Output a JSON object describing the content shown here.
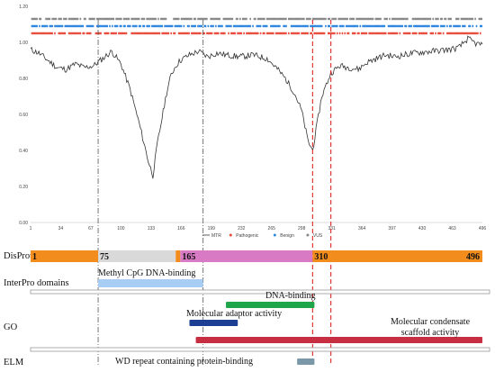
{
  "chart_data": {
    "type": "line",
    "x_ticks": [
      "1",
      "34",
      "67",
      "100",
      "133",
      "166",
      "199",
      "232",
      "265",
      "298",
      "331",
      "364",
      "397",
      "430",
      "463",
      "496"
    ],
    "y_ticks": [
      "0.00",
      "0.20",
      "0.40",
      "0.60",
      "0.80",
      "1.00",
      "1.20"
    ],
    "xlim": [
      1,
      496
    ],
    "ylim": [
      0,
      1.2
    ],
    "grid": false,
    "series": [
      {
        "name": "MTR",
        "color": "#333333",
        "x": [
          1,
          10,
          20,
          30,
          40,
          50,
          60,
          70,
          80,
          90,
          100,
          110,
          120,
          130,
          135,
          140,
          145,
          150,
          155,
          160,
          165,
          175,
          185,
          195,
          205,
          215,
          230,
          245,
          260,
          270,
          280,
          290,
          298,
          305,
          310,
          315,
          320,
          330,
          340,
          350,
          360,
          370,
          380,
          390,
          400,
          420,
          440,
          460,
          470,
          480,
          490,
          496
        ],
        "values": [
          0.96,
          0.94,
          0.9,
          0.86,
          0.85,
          0.88,
          0.86,
          0.87,
          0.91,
          0.95,
          0.88,
          0.74,
          0.55,
          0.34,
          0.26,
          0.44,
          0.58,
          0.72,
          0.82,
          0.87,
          0.9,
          0.93,
          0.95,
          0.92,
          0.94,
          0.93,
          0.92,
          0.93,
          0.91,
          0.86,
          0.8,
          0.72,
          0.62,
          0.45,
          0.4,
          0.55,
          0.7,
          0.83,
          0.87,
          0.86,
          0.85,
          0.89,
          0.91,
          0.93,
          0.92,
          0.94,
          0.95,
          0.96,
          0.97,
          1.02,
          0.99,
          0.99
        ]
      }
    ],
    "variant_rows": [
      {
        "name": "VUS",
        "color": "#888888",
        "y": 1.13
      },
      {
        "name": "Benign",
        "color": "#2e86de",
        "y": 1.09
      },
      {
        "name": "Pathogenic",
        "color": "#e74c3c",
        "y": 1.05
      }
    ],
    "legend": {
      "position": "bottom",
      "items": [
        {
          "label": "MTR",
          "color": "#333333",
          "marker": "line"
        },
        {
          "label": "Pathogenic",
          "color": "#e74c3c",
          "marker": "dot"
        },
        {
          "label": "Benign",
          "color": "#2e86de",
          "marker": "dot"
        },
        {
          "label": "VUS",
          "color": "#888888",
          "marker": "dot"
        }
      ]
    },
    "guide_lines": [
      {
        "x": 75,
        "style": "dash-dot",
        "color": "#555555"
      },
      {
        "x": 190,
        "style": "dash-dot",
        "color": "#555555"
      },
      {
        "x": 310,
        "style": "dashed",
        "color": "#e02424"
      },
      {
        "x": 330,
        "style": "dashed",
        "color": "#e02424"
      }
    ]
  },
  "tracks": {
    "disprot": {
      "label": "DisProt",
      "segments": [
        {
          "start": 1,
          "end": 75,
          "color": "#f28c1c"
        },
        {
          "start": 75,
          "end": 160,
          "color": "#d9d9d9"
        },
        {
          "start": 160,
          "end": 165,
          "color": "#f28c1c"
        },
        {
          "start": 165,
          "end": 310,
          "color": "#d87ac4"
        },
        {
          "start": 310,
          "end": 496,
          "color": "#f28c1c"
        }
      ],
      "numbers": [
        {
          "text": "1",
          "at": 1,
          "anchor": "start"
        },
        {
          "text": "75",
          "at": 75,
          "anchor": "start"
        },
        {
          "text": "165",
          "at": 165,
          "anchor": "start"
        },
        {
          "text": "310",
          "at": 310,
          "anchor": "start"
        },
        {
          "text": "496",
          "at": 496,
          "anchor": "end"
        }
      ]
    },
    "interpro": {
      "label": "InterPro domains",
      "domain": {
        "text": "Methyl CpG DNA-binding",
        "start": 75,
        "end": 190,
        "color": "#a8cdf5"
      }
    },
    "go": {
      "label": "GO",
      "items": [
        {
          "text": "DNA-binding",
          "start": 215,
          "end": 312,
          "color": "#1fa64a"
        },
        {
          "text": "Molecular adaptor activity",
          "start": 175,
          "end": 228,
          "color": "#1c3f94"
        },
        {
          "text": "Molecular condensate",
          "text2": "scaffold activity",
          "start": 182,
          "end": 496,
          "color": "#c72e42"
        }
      ]
    },
    "elm": {
      "label": "ELM",
      "items": [
        {
          "text": "WD repeat containing protein-binding",
          "start": 293,
          "end": 312,
          "color": "#7a98a8"
        }
      ]
    }
  }
}
